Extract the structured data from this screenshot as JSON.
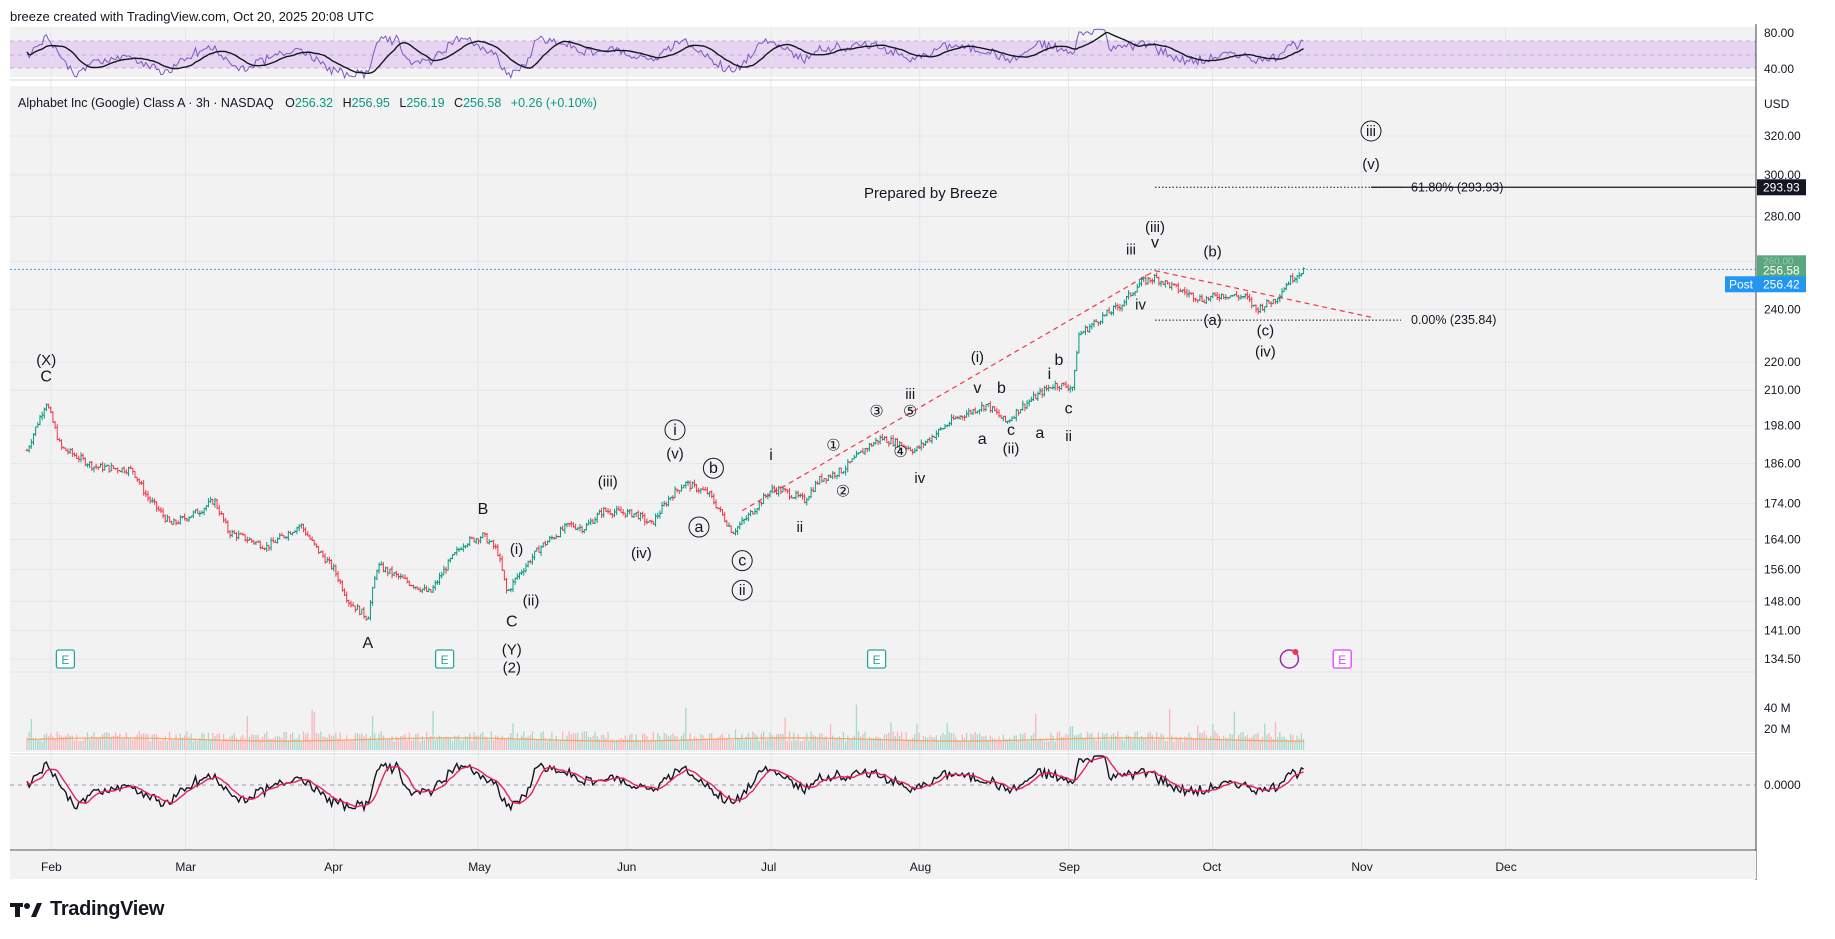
{
  "header": {
    "created_line": "breeze created with TradingView.com, Oct 20, 2025 20:08 UTC",
    "symbol_name": "Alphabet Inc (Google) Class A · 3h · NASDAQ",
    "ohlc": {
      "o_label": "O",
      "o": "256.32",
      "h_label": "H",
      "h": "256.95",
      "l_label": "L",
      "l": "256.19",
      "c_label": "C",
      "c": "256.58",
      "change": "+0.26 (+0.10%)"
    },
    "currency": "USD"
  },
  "brand": {
    "name": "TradingView",
    "logo_icon": "tradingview-logo-icon"
  },
  "colors": {
    "up": "#089981",
    "down": "#f23645",
    "rsi": "#7e57c2",
    "ma": "#131722",
    "volume_ma": "#f7a35c",
    "annotation_line": "#f23645",
    "last_price": "#5aa77e",
    "post_badge": "#2196f3",
    "earnings": "#26a69a",
    "earnings_future": "#e040fb"
  },
  "chart_data": {
    "type": "line",
    "title": "",
    "note": "Prepared by Breeze",
    "x_axis": {
      "ticks": [
        "Feb",
        "Mar",
        "Apr",
        "May",
        "Jun",
        "Jul",
        "Aug",
        "Sep",
        "Oct",
        "Nov",
        "Dec"
      ]
    },
    "price_axis": {
      "scale": "log",
      "range": [
        130,
        345
      ],
      "ticks": [
        "320.00",
        "300.00",
        "280.00",
        "260.00",
        "240.00",
        "220.00",
        "210.00",
        "198.00",
        "186.00",
        "174.00",
        "164.00",
        "156.00",
        "148.00",
        "141.00",
        "134.50"
      ]
    },
    "rsi_axis": {
      "ticks": [
        "80.00",
        "40.00"
      ]
    },
    "volume_axis": {
      "ticks": [
        "40 M",
        "20 M"
      ]
    },
    "macd_axis": {
      "ticks": [
        "0.0000"
      ]
    },
    "series": [
      {
        "type": "ohlc",
        "points": [
          [
            "Jan 27",
            190
          ],
          [
            "Jan 31",
            206
          ],
          [
            "Feb 3",
            191
          ],
          [
            "Feb 10",
            185
          ],
          [
            "Feb 18",
            184
          ],
          [
            "Feb 21",
            176
          ],
          [
            "Feb 26",
            168
          ],
          [
            "Mar 4",
            172
          ],
          [
            "Mar 7",
            175
          ],
          [
            "Mar 10",
            166
          ],
          [
            "Mar 14",
            164
          ],
          [
            "Mar 18",
            162
          ],
          [
            "Mar 25",
            168
          ],
          [
            "Mar 28",
            162
          ],
          [
            "Apr 1",
            156
          ],
          [
            "Apr 4",
            148
          ],
          [
            "Apr 8",
            144
          ],
          [
            "Apr 10",
            157
          ],
          [
            "Apr 16",
            153
          ],
          [
            "Apr 21",
            150
          ],
          [
            "Apr 25",
            158
          ],
          [
            "Apr 28",
            163
          ],
          [
            "May 2",
            165
          ],
          [
            "May 5",
            161
          ],
          [
            "May 7",
            150
          ],
          [
            "May 9",
            154
          ],
          [
            "May 14",
            162
          ],
          [
            "May 20",
            168
          ],
          [
            "May 23",
            167
          ],
          [
            "May 27",
            172
          ],
          [
            "Jun 3",
            171
          ],
          [
            "Jun 6",
            168
          ],
          [
            "Jun 10",
            176
          ],
          [
            "Jun 13",
            180
          ],
          [
            "Jun 18",
            177
          ],
          [
            "Jun 23",
            166
          ],
          [
            "Jun 26",
            170
          ],
          [
            "Jul 1",
            178
          ],
          [
            "Jul 3",
            178
          ],
          [
            "Jul 8",
            175
          ],
          [
            "Jul 11",
            181
          ],
          [
            "Jul 16",
            184
          ],
          [
            "Jul 21",
            191
          ],
          [
            "Jul 24",
            194
          ],
          [
            "Jul 28",
            192
          ],
          [
            "Jul 31",
            190
          ],
          [
            "Aug 4",
            195
          ],
          [
            "Aug 8",
            200
          ],
          [
            "Aug 12",
            203
          ],
          [
            "Aug 15",
            205
          ],
          [
            "Aug 19",
            199
          ],
          [
            "Aug 22",
            204
          ],
          [
            "Aug 27",
            210
          ],
          [
            "Aug 29",
            212
          ],
          [
            "Sep 2",
            211
          ],
          [
            "Sep 3",
            230
          ],
          [
            "Sep 8",
            237
          ],
          [
            "Sep 12",
            242
          ],
          [
            "Sep 16",
            251
          ],
          [
            "Sep 19",
            253
          ],
          [
            "Sep 24",
            248
          ],
          [
            "Sep 29",
            244
          ],
          [
            "Oct 3",
            246
          ],
          [
            "Oct 8",
            245
          ],
          [
            "Oct 10",
            240
          ],
          [
            "Oct 14",
            244
          ],
          [
            "Oct 17",
            252
          ],
          [
            "Oct 20",
            256.58
          ]
        ]
      }
    ],
    "levels": [
      {
        "label": "61.80% (293.93)",
        "price": 293.93,
        "from": "Sep 19",
        "to": "Nov 3"
      },
      {
        "label": "0.00% (235.84)",
        "price": 235.84,
        "from": "Sep 19",
        "to": "Nov 3"
      }
    ],
    "last_price": {
      "label": "256.58",
      "price": 256.58
    },
    "post_market": {
      "label": "Post",
      "price_label": "256.42"
    },
    "target_price_label": "293.93",
    "hidden_tick_label": "260.00",
    "trend_lines": [
      {
        "from": [
          "Jun 25",
          172
        ],
        "to": [
          "Sep 19",
          256
        ]
      },
      {
        "from": [
          "Sep 19",
          256
        ],
        "to": [
          "Nov 3",
          237
        ]
      }
    ],
    "earnings_markers": [
      {
        "date": "Feb 4",
        "label": "E"
      },
      {
        "date": "Apr 24",
        "label": "E"
      },
      {
        "date": "Jul 23",
        "label": "E"
      },
      {
        "date": "Oct 28",
        "label": "E",
        "future": true
      }
    ],
    "wave_labels": [
      {
        "text": "(X)",
        "date": "Jan 31",
        "price": 219
      },
      {
        "text": "C",
        "date": "Jan 31",
        "price": 213
      },
      {
        "text": "A",
        "date": "Apr 8",
        "price": 137
      },
      {
        "text": "B",
        "date": "May 2",
        "price": 171
      },
      {
        "text": "(i)",
        "date": "May 9",
        "price": 160
      },
      {
        "text": "(ii)",
        "date": "May 12",
        "price": 147
      },
      {
        "text": "C",
        "date": "May 8",
        "price": 142
      },
      {
        "text": "(Y)",
        "date": "May 8",
        "price": 135.5
      },
      {
        "text": "(2)",
        "date": "May 8",
        "price": 131.5
      },
      {
        "text": "(iii)",
        "date": "May 28",
        "price": 179
      },
      {
        "text": "(iv)",
        "date": "Jun 4",
        "price": 159
      },
      {
        "text": "i",
        "date": "Jun 11",
        "price": 195,
        "circled": true
      },
      {
        "text": "(v)",
        "date": "Jun 11",
        "price": 187.5
      },
      {
        "text": "a",
        "date": "Jun 16",
        "price": 166,
        "circled": true
      },
      {
        "text": "b",
        "date": "Jun 19",
        "price": 183,
        "circled": true
      },
      {
        "text": "c",
        "date": "Jun 25",
        "price": 157,
        "circled": true
      },
      {
        "text": "ii",
        "date": "Jun 25",
        "price": 149.5,
        "circled": true
      },
      {
        "text": "i",
        "date": "Jul 1",
        "price": 187
      },
      {
        "text": "ii",
        "date": "Jul 7",
        "price": 166
      },
      {
        "text": "①",
        "date": "Jul 14",
        "price": 190
      },
      {
        "text": "②",
        "date": "Jul 16",
        "price": 176
      },
      {
        "text": "③",
        "date": "Jul 23",
        "price": 201
      },
      {
        "text": "④",
        "date": "Jul 28",
        "price": 188
      },
      {
        "text": "⑤",
        "date": "Jul 30",
        "price": 201
      },
      {
        "text": "iii",
        "date": "Jul 30",
        "price": 207
      },
      {
        "text": "iv",
        "date": "Aug 1",
        "price": 180
      },
      {
        "text": "(i)",
        "date": "Aug 13",
        "price": 220
      },
      {
        "text": "v",
        "date": "Aug 13",
        "price": 209
      },
      {
        "text": "a",
        "date": "Aug 14",
        "price": 192
      },
      {
        "text": "b",
        "date": "Aug 18",
        "price": 209
      },
      {
        "text": "c",
        "date": "Aug 20",
        "price": 195
      },
      {
        "text": "(ii)",
        "date": "Aug 20",
        "price": 189
      },
      {
        "text": "a",
        "date": "Aug 26",
        "price": 194
      },
      {
        "text": "i",
        "date": "Aug 28",
        "price": 214
      },
      {
        "text": "b",
        "date": "Aug 30",
        "price": 219
      },
      {
        "text": "c",
        "date": "Sep 1",
        "price": 202
      },
      {
        "text": "ii",
        "date": "Sep 1",
        "price": 193
      },
      {
        "text": "iii",
        "date": "Sep 14",
        "price": 263
      },
      {
        "text": "(iii)",
        "date": "Sep 19",
        "price": 273
      },
      {
        "text": "v",
        "date": "Sep 19",
        "price": 266
      },
      {
        "text": "iv",
        "date": "Sep 16",
        "price": 240
      },
      {
        "text": "(b)",
        "date": "Oct 1",
        "price": 262
      },
      {
        "text": "(a)",
        "date": "Oct 1",
        "price": 234
      },
      {
        "text": "(c)",
        "date": "Oct 12",
        "price": 230
      },
      {
        "text": "(iv)",
        "date": "Oct 12",
        "price": 222
      },
      {
        "text": "iii",
        "date": "Nov 3",
        "price": 320,
        "circled": true
      },
      {
        "text": "(v)",
        "date": "Nov 3",
        "price": 303
      }
    ]
  }
}
